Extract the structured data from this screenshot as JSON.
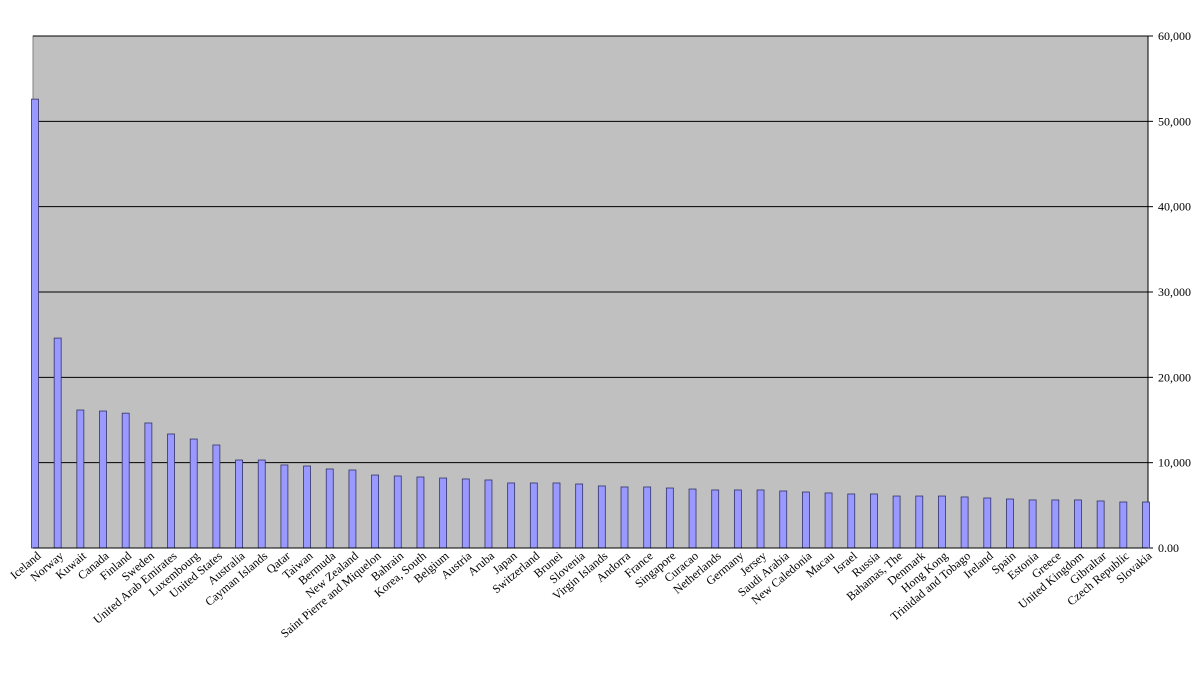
{
  "chart_data": {
    "type": "bar",
    "categories": [
      "Iceland",
      "Norway",
      "Kuwait",
      "Canada",
      "Finland",
      "Sweden",
      "United Arab Emirates",
      "Luxembourg",
      "United States",
      "Australia",
      "Cayman Islands",
      "Qatar",
      "Taiwan",
      "Bermuda",
      "New Zealand",
      "Saint Pierre and Miquelon",
      "Bahrain",
      "Korea, South",
      "Belgium",
      "Austria",
      "Aruba",
      "Japan",
      "Switzerland",
      "Brunei",
      "Slovenia",
      "Virgin Islands",
      "Andorra",
      "France",
      "Singapore",
      "Curacao",
      "Netherlands",
      "Germany",
      "Jersey",
      "Saudi Arabia",
      "New Caledonia",
      "Macau",
      "Israel",
      "Russia",
      "Bahamas, The",
      "Denmark",
      "Hong Kong",
      "Trinidad and Tobago",
      "Ireland",
      "Spain",
      "Estonia",
      "Greece",
      "United Kingdom",
      "Gibraltar",
      "Czech Republic",
      "Slovakia"
    ],
    "values": [
      52600,
      24600,
      16170,
      16050,
      15800,
      14650,
      13360,
      12770,
      12070,
      10310,
      10310,
      9730,
      9610,
      9260,
      9140,
      8550,
      8440,
      8320,
      8200,
      8090,
      7970,
      7620,
      7620,
      7620,
      7500,
      7270,
      7150,
      7150,
      7030,
      6910,
      6800,
      6800,
      6800,
      6680,
      6560,
      6450,
      6330,
      6330,
      6090,
      6090,
      6090,
      5980,
      5860,
      5740,
      5630,
      5630,
      5630,
      5510,
      5390,
      5390
    ],
    "color": "#9999ff",
    "ylim": [
      0,
      60000
    ],
    "yticks": [
      {
        "value": 0,
        "label": "0.00"
      },
      {
        "value": 10000,
        "label": "10,000"
      },
      {
        "value": 20000,
        "label": "20,000"
      },
      {
        "value": 30000,
        "label": "30,000"
      },
      {
        "value": 40000,
        "label": "40,000"
      },
      {
        "value": 50000,
        "label": "50,000"
      },
      {
        "value": 60000,
        "label": "60,000"
      }
    ],
    "grid": true
  }
}
